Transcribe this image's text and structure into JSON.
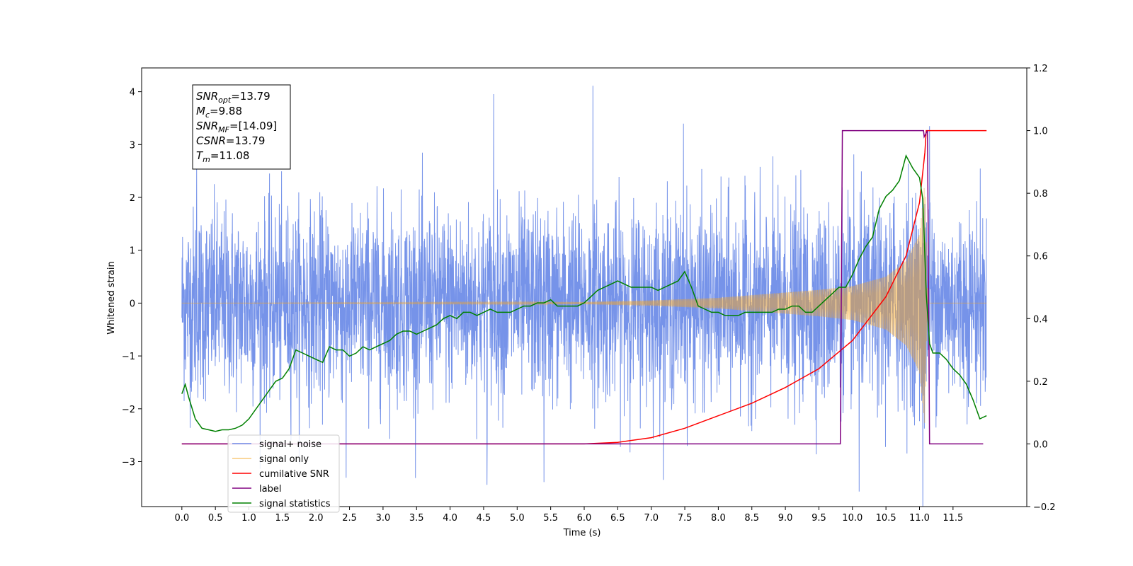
{
  "chart_data": {
    "type": "line",
    "title": "",
    "xlabel": "Time (s)",
    "ylabel": "Whitened strain",
    "xlim": [
      -0.6,
      12.6
    ],
    "ylim": [
      -3.85,
      4.45
    ],
    "y2lim": [
      -0.2,
      1.2
    ],
    "x_ticks": [
      "0.0",
      "0.5",
      "1.0",
      "1.5",
      "2.0",
      "2.5",
      "3.0",
      "3.5",
      "4.0",
      "4.5",
      "5.0",
      "5.5",
      "6.0",
      "6.5",
      "7.0",
      "7.5",
      "8.0",
      "8.5",
      "9.0",
      "9.5",
      "10.0",
      "10.5",
      "11.0",
      "11.5"
    ],
    "y_ticks": [
      "−3",
      "−2",
      "−1",
      "0",
      "1",
      "2",
      "3",
      "4"
    ],
    "y2_ticks": [
      "−0.2",
      "0.0",
      "0.2",
      "0.4",
      "0.6",
      "0.8",
      "1.0",
      "1.2"
    ],
    "grid": false,
    "legend_position": "bottom-left",
    "annotation": {
      "lines": [
        {
          "sym": "SNR",
          "sub": "opt",
          "val": "=13.79"
        },
        {
          "sym": "M",
          "sub": "c",
          "val": "=9.88"
        },
        {
          "sym": "SNR",
          "sub": "MF",
          "val": "=[14.09]"
        },
        {
          "sym": "CSNR",
          "sub": "",
          "val": "=13.79"
        },
        {
          "sym": "T",
          "sub": "m",
          "val": "=11.08"
        }
      ]
    },
    "series": [
      {
        "name": "signal+ noise",
        "axis": "left",
        "color": "#4169e1",
        "kind": "noise",
        "x_range": [
          0.0,
          12.0
        ],
        "std": 1.0,
        "notable_peaks": [
          [
            0.22,
            2.55
          ],
          [
            4.65,
            3.95
          ],
          [
            6.13,
            4.12
          ],
          [
            7.48,
            3.35
          ],
          [
            11.15,
            3.35
          ],
          [
            4.55,
            -3.45
          ],
          [
            5.4,
            -3.4
          ],
          [
            10.1,
            -3.3
          ],
          [
            2.45,
            -3.3
          ],
          [
            11.05,
            -3.3
          ]
        ]
      },
      {
        "name": "signal only",
        "axis": "left",
        "color": "#f5a623",
        "kind": "chirp",
        "t_merger": 11.08,
        "envelope": [
          [
            0.0,
            0.0
          ],
          [
            6.0,
            0.02
          ],
          [
            7.0,
            0.05
          ],
          [
            8.0,
            0.1
          ],
          [
            9.0,
            0.2
          ],
          [
            9.5,
            0.25
          ],
          [
            10.0,
            0.32
          ],
          [
            10.5,
            0.5
          ],
          [
            10.8,
            0.8
          ],
          [
            11.0,
            1.3
          ],
          [
            11.08,
            2.3
          ],
          [
            11.12,
            0.0
          ],
          [
            12.0,
            0.0
          ]
        ]
      },
      {
        "name": "cumilative SNR",
        "axis": "right",
        "color": "#ff0000",
        "x": [
          0.0,
          6.0,
          6.5,
          7.0,
          7.5,
          8.0,
          8.5,
          9.0,
          9.5,
          10.0,
          10.5,
          10.8,
          11.0,
          11.08,
          11.1,
          12.0
        ],
        "y": [
          0.0,
          0.0,
          0.005,
          0.02,
          0.05,
          0.09,
          0.13,
          0.18,
          0.24,
          0.33,
          0.47,
          0.6,
          0.77,
          0.93,
          1.0,
          1.0
        ]
      },
      {
        "name": "label",
        "axis": "right",
        "color": "#800080",
        "x": [
          0.0,
          9.82,
          9.85,
          11.06,
          11.07,
          11.12,
          11.15,
          11.95
        ],
        "y": [
          0.0,
          0.0,
          1.0,
          1.0,
          0.98,
          1.0,
          0.0,
          0.0
        ]
      },
      {
        "name": "signal statistics",
        "axis": "right",
        "color": "#008000",
        "x": [
          0.0,
          0.05,
          0.1,
          0.2,
          0.3,
          0.4,
          0.5,
          0.6,
          0.7,
          0.8,
          0.9,
          1.0,
          1.1,
          1.2,
          1.3,
          1.4,
          1.5,
          1.6,
          1.7,
          1.8,
          1.9,
          2.0,
          2.1,
          2.2,
          2.3,
          2.4,
          2.5,
          2.6,
          2.7,
          2.8,
          2.9,
          3.0,
          3.1,
          3.2,
          3.3,
          3.4,
          3.5,
          3.6,
          3.7,
          3.8,
          3.9,
          4.0,
          4.1,
          4.2,
          4.3,
          4.4,
          4.5,
          4.6,
          4.7,
          4.8,
          4.9,
          5.0,
          5.1,
          5.2,
          5.3,
          5.4,
          5.5,
          5.6,
          5.7,
          5.8,
          5.9,
          6.0,
          6.1,
          6.2,
          6.3,
          6.4,
          6.5,
          6.6,
          6.7,
          6.8,
          6.9,
          7.0,
          7.1,
          7.2,
          7.3,
          7.4,
          7.5,
          7.6,
          7.7,
          7.8,
          7.9,
          8.0,
          8.1,
          8.2,
          8.3,
          8.4,
          8.5,
          8.6,
          8.7,
          8.8,
          8.9,
          9.0,
          9.1,
          9.2,
          9.3,
          9.4,
          9.5,
          9.6,
          9.7,
          9.8,
          9.9,
          10.0,
          10.1,
          10.2,
          10.3,
          10.4,
          10.5,
          10.6,
          10.7,
          10.8,
          10.9,
          11.0,
          11.05,
          11.1,
          11.15,
          11.2,
          11.3,
          11.4,
          11.5,
          11.6,
          11.7,
          11.8,
          11.9,
          12.0
        ],
        "y": [
          0.16,
          0.19,
          0.15,
          0.08,
          0.05,
          0.045,
          0.04,
          0.045,
          0.045,
          0.05,
          0.06,
          0.08,
          0.11,
          0.14,
          0.17,
          0.2,
          0.21,
          0.24,
          0.3,
          0.29,
          0.28,
          0.27,
          0.26,
          0.31,
          0.3,
          0.3,
          0.28,
          0.29,
          0.31,
          0.3,
          0.31,
          0.32,
          0.33,
          0.35,
          0.36,
          0.36,
          0.35,
          0.36,
          0.37,
          0.38,
          0.4,
          0.41,
          0.4,
          0.42,
          0.42,
          0.41,
          0.42,
          0.43,
          0.42,
          0.42,
          0.42,
          0.43,
          0.44,
          0.44,
          0.45,
          0.45,
          0.46,
          0.44,
          0.44,
          0.44,
          0.44,
          0.45,
          0.47,
          0.49,
          0.5,
          0.51,
          0.52,
          0.51,
          0.5,
          0.5,
          0.5,
          0.5,
          0.49,
          0.5,
          0.51,
          0.52,
          0.55,
          0.5,
          0.44,
          0.43,
          0.42,
          0.42,
          0.41,
          0.41,
          0.41,
          0.42,
          0.42,
          0.42,
          0.42,
          0.42,
          0.43,
          0.43,
          0.44,
          0.44,
          0.42,
          0.42,
          0.44,
          0.46,
          0.48,
          0.5,
          0.5,
          0.54,
          0.59,
          0.63,
          0.66,
          0.75,
          0.79,
          0.81,
          0.84,
          0.92,
          0.88,
          0.85,
          0.78,
          0.48,
          0.32,
          0.29,
          0.29,
          0.27,
          0.24,
          0.22,
          0.19,
          0.14,
          0.08,
          0.09
        ]
      }
    ]
  }
}
